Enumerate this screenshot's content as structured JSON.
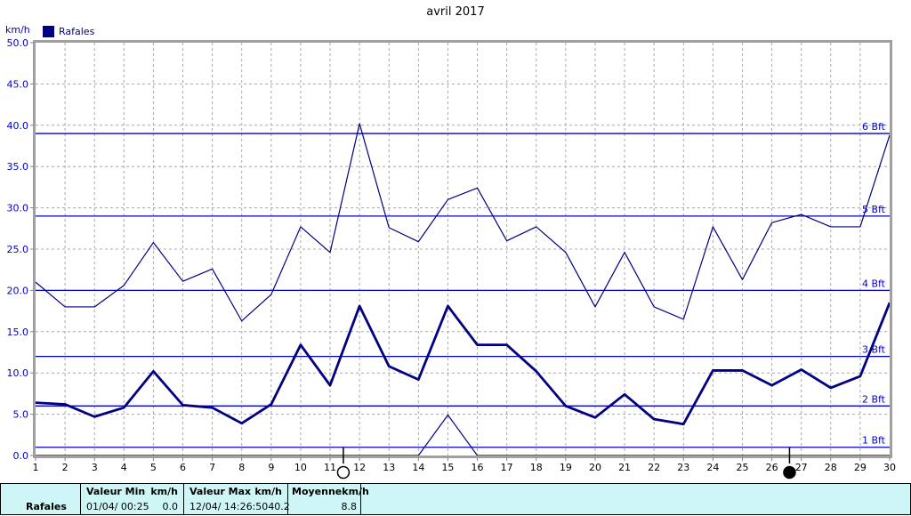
{
  "title": "avril 2017",
  "y_axis_unit_label": "km/h",
  "legend": {
    "label": "Rafales"
  },
  "colors": {
    "series": "#000080",
    "beaufort_line": "#0000cc",
    "axis_label_blue": "#0000c0",
    "grid_dash": "#a8a8a8",
    "frame_gray": "#a0a0a0",
    "tick_gray": "#808080",
    "table_bg": "#cff6f6",
    "text_black": "#000000"
  },
  "chart_data": {
    "type": "line",
    "title": "avril 2017",
    "ylabel": "km/h",
    "xlabel": "",
    "ylim": [
      0,
      50
    ],
    "grid": true,
    "legend_position": "top-left",
    "x_categories": [
      "1",
      "2",
      "3",
      "4",
      "5",
      "6",
      "7",
      "8",
      "9",
      "10",
      "11",
      "12",
      "13",
      "14",
      "15",
      "16",
      "17",
      "18",
      "19",
      "20",
      "21",
      "22",
      "23",
      "24",
      "25",
      "26",
      "27",
      "28",
      "29",
      "30"
    ],
    "y_ticks": [
      50,
      45,
      40,
      35,
      30,
      25,
      20,
      15,
      10,
      5,
      0
    ],
    "y_tick_labels": [
      "50.0",
      "45.0",
      "40.0",
      "35.0",
      "30.0",
      "25.0",
      "20.0",
      "15.0",
      "10.0",
      "5.0",
      "0.0"
    ],
    "series": [
      {
        "name": "rafales-max-thin-line",
        "stroke_width": 1.2,
        "values": [
          21.0,
          18.0,
          18.0,
          20.6,
          25.8,
          21.1,
          22.6,
          16.3,
          19.5,
          27.7,
          24.6,
          40.2,
          27.6,
          25.9,
          31.0,
          32.4,
          26.0,
          27.7,
          24.6,
          18.0,
          24.6,
          18.0,
          16.5,
          27.7,
          21.3,
          28.2,
          29.2,
          27.7,
          27.7,
          38.8
        ]
      },
      {
        "name": "rafales-moyenne-thick-line",
        "stroke_width": 2.8,
        "values": [
          6.4,
          6.2,
          4.7,
          5.8,
          10.2,
          6.1,
          5.8,
          3.9,
          6.2,
          13.4,
          8.5,
          18.1,
          10.8,
          9.2,
          18.1,
          13.4,
          13.4,
          10.2,
          6.0,
          4.6,
          7.4,
          4.4,
          3.8,
          10.3,
          10.3,
          8.5,
          10.4,
          8.2,
          9.6,
          18.5
        ]
      },
      {
        "name": "rafales-min-thin-line",
        "stroke_width": 1.2,
        "values": [
          0,
          0,
          0,
          0,
          0,
          0,
          0,
          0,
          0,
          0,
          0,
          0,
          0,
          0,
          4.9,
          0,
          0,
          0,
          0,
          0,
          0,
          0,
          0,
          0,
          0,
          0,
          0,
          0,
          0,
          0
        ]
      }
    ],
    "beaufort_lines": [
      {
        "label": "1 Bft",
        "km_h": 1
      },
      {
        "label": "2 Bft",
        "km_h": 6
      },
      {
        "label": "3 Bft",
        "km_h": 12
      },
      {
        "label": "4 Bft",
        "km_h": 20
      },
      {
        "label": "5 Bft",
        "km_h": 29
      },
      {
        "label": "6 Bft",
        "km_h": 39
      }
    ],
    "moon_markers": [
      {
        "shape": "open-circle",
        "day": 11.45
      },
      {
        "shape": "filled-circle",
        "day": 26.6
      }
    ]
  },
  "table": {
    "row_label": "Rafales",
    "min": {
      "header": "Valeur Min",
      "unit": "km/h",
      "datetime": "01/04/ 00:25",
      "value": "0.0"
    },
    "max": {
      "header": "Valeur Max",
      "unit": "km/h",
      "datetime": "12/04/ 14:26:50",
      "value": "40.2"
    },
    "mean": {
      "header": "Moyenne",
      "unit": "km/h",
      "value": "8.8"
    }
  }
}
